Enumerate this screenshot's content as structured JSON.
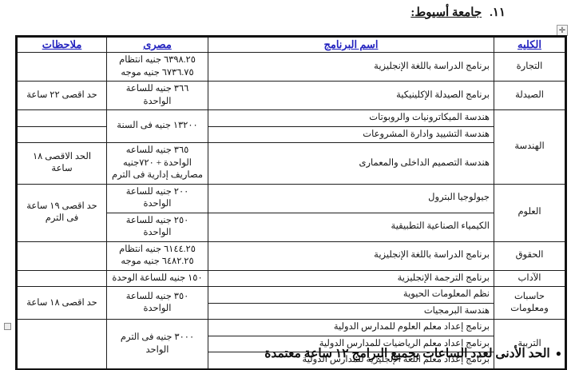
{
  "title": {
    "number": "١١.",
    "text": "جامعة أسيوط:"
  },
  "ui": {
    "move_icon": "✛"
  },
  "table": {
    "headers": [
      "الكليه",
      "اسم البرنامج",
      "مصرى",
      "ملاحظات"
    ],
    "header_keys": [
      "college",
      "program",
      "fee",
      "notes"
    ],
    "rows": [
      [
        {
          "t": "التجارة"
        },
        {
          "t": "برنامج الدراسة باللغة الإنجليزية"
        },
        {
          "t": "٦٣٩٨.٢٥ جنيه انتظام\n٦٧٣٦.٧٥ جنيه موجه"
        },
        {
          "t": ""
        }
      ],
      [
        {
          "t": "الصيدلة"
        },
        {
          "t": "برنامج الصيدلة الإكلينيكية"
        },
        {
          "t": "٣٦٦ جنيه للساعة الواحدة"
        },
        {
          "t": "حد اقصى ٢٢ ساعة"
        }
      ],
      [
        {
          "t": "الهندسة",
          "rs": 3
        },
        {
          "t": "هندسة الميكاترونيات والروبوتات"
        },
        {
          "t": "١٣٢٠٠ جنيه فى السنة",
          "rs": 2
        },
        {
          "t": ""
        }
      ],
      [
        null,
        {
          "t": "هندسة التشييد وادارة المشروعات"
        },
        null,
        {
          "t": ""
        }
      ],
      [
        null,
        {
          "t": "هندسة التصميم الداخلى والمعمارى"
        },
        {
          "t": "٣٦٥ جنيه للساعه الواحدة + ٧٢٠جنيه مصاريف إدارية فى الترم"
        },
        {
          "t": "الحد الاقصى ١٨ ساعة"
        }
      ],
      [
        {
          "t": "العلوم",
          "rs": 2
        },
        {
          "t": "جيولوجيا البترول"
        },
        {
          "t": "٢٠٠ جنيه للساعة الواحدة"
        },
        {
          "t": "حد اقصى ١٩ ساعة فى الترم",
          "rs": 2
        }
      ],
      [
        null,
        {
          "t": "الكيمياء الصناعية التطبيقية"
        },
        {
          "t": "٢٥٠ جنيه للساعة الواحدة"
        },
        null
      ],
      [
        {
          "t": "الحقوق"
        },
        {
          "t": "برنامج الدراسة باللغة الإنجليزية"
        },
        {
          "t": "٦١٤٤.٢٥ جنيه انتظام\n٦٤٨٢.٢٥ جنيه موجه"
        },
        {
          "t": ""
        }
      ],
      [
        {
          "t": "الآداب"
        },
        {
          "t": "برنامج الترجمة الإنجليزية"
        },
        {
          "t": "١٥٠ جنيه للساعة الوحدة"
        },
        {
          "t": ""
        }
      ],
      [
        {
          "t": "حاسبات ومعلومات",
          "rs": 2
        },
        {
          "t": "نظم المعلومات الحيوية"
        },
        {
          "t": "٣٥٠ جنيه للساعة الواحدة",
          "rs": 2
        },
        {
          "t": "حد اقصى ١٨ ساعة",
          "rs": 2
        }
      ],
      [
        null,
        {
          "t": "هندسة البرمجيات"
        },
        null,
        null
      ],
      [
        {
          "t": "التربية",
          "rs": 3
        },
        {
          "t": "برنامج إعداد معلم العلوم للمدارس الدولية"
        },
        {
          "t": "٣٠٠٠ جنيه فى الترم الواحد",
          "rs": 3
        },
        {
          "t": "",
          "rs": 3
        }
      ],
      [
        null,
        {
          "t": "برنامج إعداد معلم الرياضيات للمدارس الدولية"
        },
        null,
        null
      ],
      [
        null,
        {
          "t": "برنامج إعداد معلم اللغة الإنجليزية للمدارس الدولية"
        },
        null,
        null
      ]
    ]
  },
  "footer": {
    "bullet": "●",
    "text": "الحد الأدنى لعدد الساعات بجميع البرامج ١٢ ساعة معتمدة"
  },
  "colors": {
    "header_text": "#2323bf",
    "body_text": "#161616",
    "border": "#1e1e1e"
  }
}
